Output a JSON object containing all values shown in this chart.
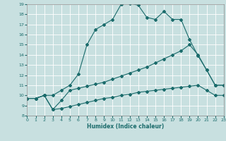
{
  "xlabel": "Humidex (Indice chaleur)",
  "xlim": [
    0,
    23
  ],
  "ylim": [
    8,
    19
  ],
  "xticks": [
    0,
    1,
    2,
    3,
    4,
    5,
    6,
    7,
    8,
    9,
    10,
    11,
    12,
    13,
    14,
    15,
    16,
    17,
    18,
    19,
    20,
    21,
    22,
    23
  ],
  "yticks": [
    8,
    9,
    10,
    11,
    12,
    13,
    14,
    15,
    16,
    17,
    18,
    19
  ],
  "bg_color": "#c8e0e0",
  "grid_color": "#ffffff",
  "line_color": "#1a6b6b",
  "line1_x": [
    0,
    1,
    2,
    3,
    4,
    5,
    6,
    7,
    8,
    9,
    10,
    11,
    12,
    13,
    14,
    15,
    16,
    17,
    18,
    19,
    20,
    21,
    22,
    23
  ],
  "line1_y": [
    9.7,
    9.7,
    10.0,
    10.0,
    10.5,
    11.0,
    12.1,
    15.0,
    16.5,
    17.0,
    17.5,
    19.0,
    19.1,
    18.9,
    17.7,
    17.5,
    18.3,
    17.5,
    17.5,
    15.5,
    13.9,
    12.5,
    11.0,
    11.0
  ],
  "line2_x": [
    0,
    1,
    2,
    3,
    4,
    5,
    6,
    7,
    8,
    9,
    10,
    11,
    12,
    13,
    14,
    15,
    16,
    17,
    18,
    19,
    20,
    21,
    22,
    23
  ],
  "line2_y": [
    9.7,
    9.7,
    10.0,
    8.6,
    9.5,
    10.5,
    10.7,
    10.9,
    11.1,
    11.3,
    11.6,
    11.9,
    12.2,
    12.5,
    12.8,
    13.2,
    13.6,
    14.0,
    14.4,
    15.0,
    14.0,
    12.5,
    11.0,
    11.0
  ],
  "line3_x": [
    0,
    1,
    2,
    3,
    4,
    5,
    6,
    7,
    8,
    9,
    10,
    11,
    12,
    13,
    14,
    15,
    16,
    17,
    18,
    19,
    20,
    21,
    22,
    23
  ],
  "line3_y": [
    9.7,
    9.7,
    10.0,
    8.6,
    8.7,
    8.9,
    9.1,
    9.3,
    9.5,
    9.7,
    9.8,
    10.0,
    10.1,
    10.3,
    10.4,
    10.5,
    10.6,
    10.7,
    10.8,
    10.9,
    11.0,
    10.5,
    10.0,
    10.0
  ]
}
